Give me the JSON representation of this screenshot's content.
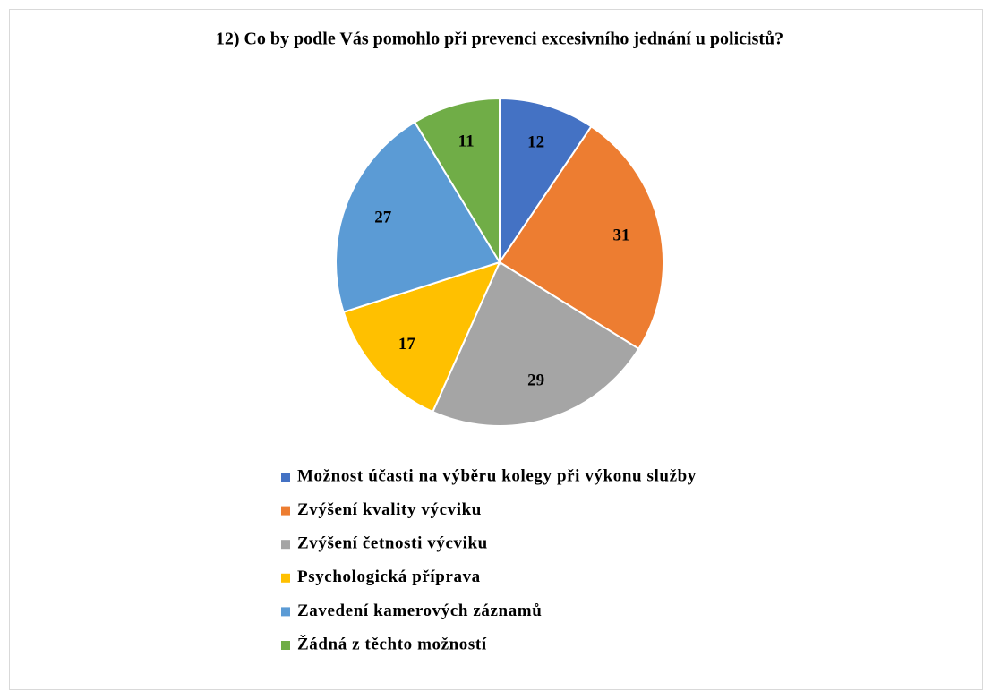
{
  "chart_data": {
    "type": "pie",
    "title": "12) Co by podle Vás pomohlo při prevenci excesivního jednání u policistů?",
    "categories": [
      "Možnost účasti na výběru kolegy při výkonu služby",
      "Zvýšení kvality výcviku",
      "Zvýšení četnosti výcviku",
      "Psychologická příprava",
      "Zavedení kamerových záznamů",
      "Žádná z těchto možností"
    ],
    "values": [
      12,
      31,
      29,
      17,
      27,
      11
    ],
    "colors": [
      "#4472c4",
      "#ed7d31",
      "#a5a5a5",
      "#ffc000",
      "#5b9bd5",
      "#70ad47"
    ],
    "legend": "bottom"
  }
}
